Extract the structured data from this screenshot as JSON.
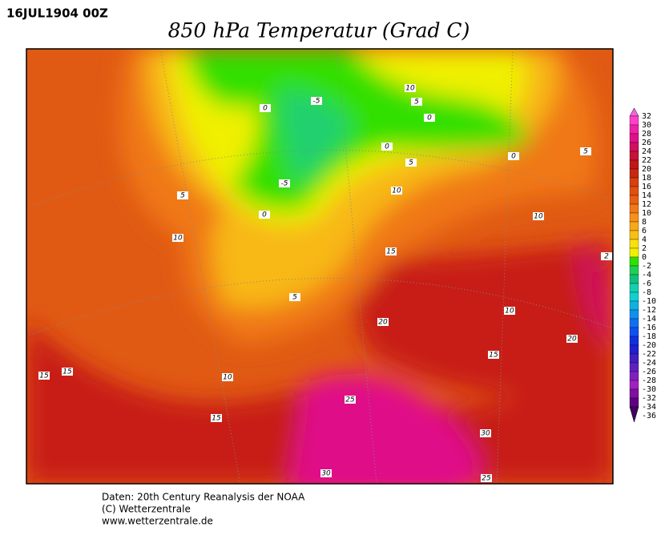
{
  "header": {
    "date": "16JUL1904 00Z",
    "title": "850 hPa Temperatur (Grad C)"
  },
  "colorbar": {
    "labels": [
      "32",
      "30",
      "28",
      "26",
      "24",
      "22",
      "20",
      "18",
      "16",
      "14",
      "12",
      "10",
      "8",
      "6",
      "4",
      "2",
      "0",
      "-2",
      "-4",
      "-6",
      "-8",
      "-10",
      "-12",
      "-14",
      "-16",
      "-18",
      "-20",
      "-22",
      "-24",
      "-26",
      "-28",
      "-30",
      "-32",
      "-34",
      "-36"
    ],
    "colors": [
      "#ff60e0",
      "#ff40c8",
      "#f020a8",
      "#e01088",
      "#d01060",
      "#c81038",
      "#c01818",
      "#c82810",
      "#d84010",
      "#e05010",
      "#e86010",
      "#f07818",
      "#f89018",
      "#f8a818",
      "#f8c010",
      "#f8e010",
      "#f0f000",
      "#30e000",
      "#20d050",
      "#10c080",
      "#10d0b0",
      "#10d0d0",
      "#10b0e0",
      "#1090f0",
      "#1070f0",
      "#1050f0",
      "#1030e0",
      "#2020d0",
      "#4020c0",
      "#6020c0",
      "#8020c0",
      "#a020c0",
      "#8010a0",
      "#600080",
      "#400060"
    ]
  },
  "contour_labels": [
    "10",
    "5",
    "0",
    "-5",
    "0",
    "0",
    "0",
    "5",
    "5",
    "10",
    "-5",
    "0",
    "5",
    "10",
    "10",
    "15",
    "5",
    "10",
    "20",
    "20",
    "15",
    "15",
    "15",
    "10",
    "25",
    "15",
    "30",
    "30",
    "25",
    "2"
  ],
  "footer": [
    "Daten: 20th Century Reanalysis der NOAA",
    "(C) Wetterzentrale",
    "www.wetterzentrale.de"
  ]
}
